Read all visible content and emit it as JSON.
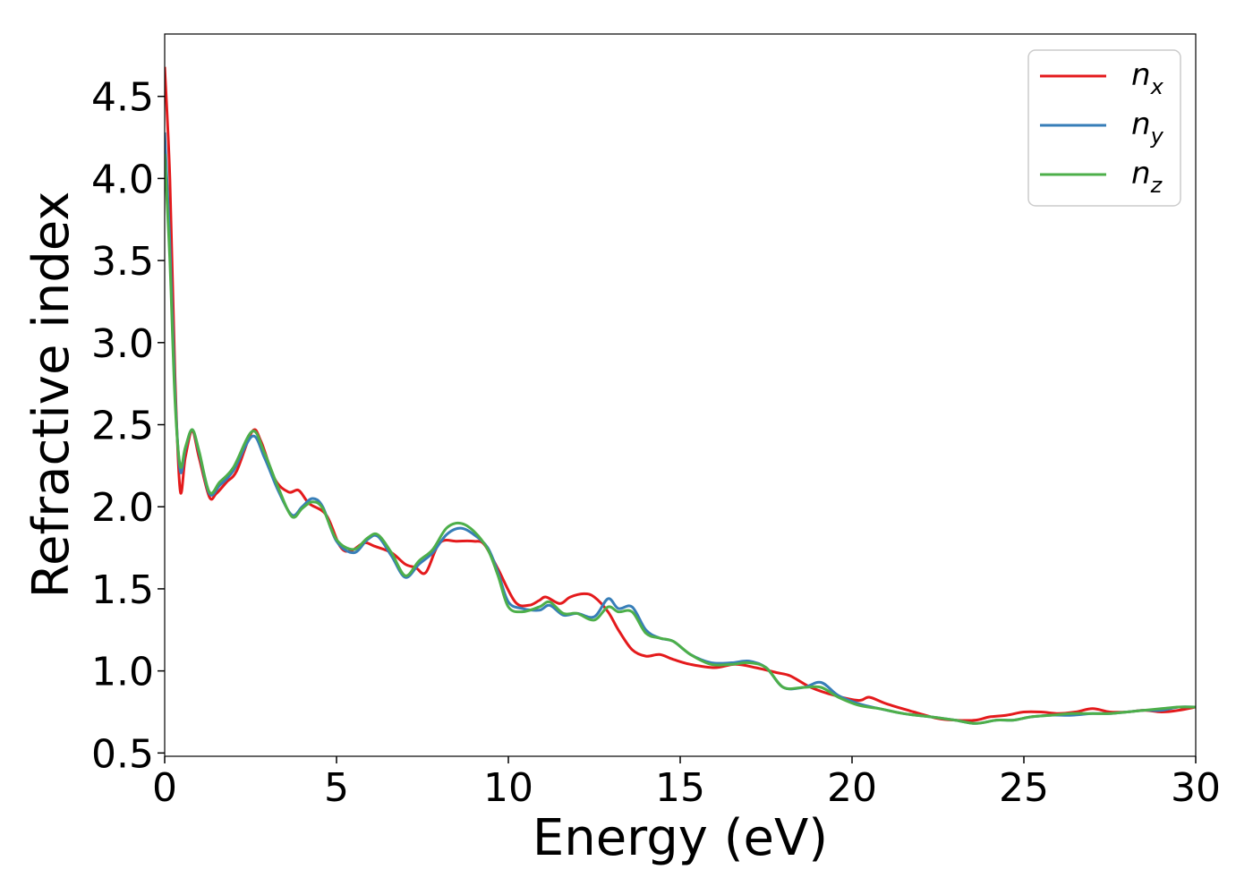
{
  "chart_data": {
    "type": "line",
    "title": "",
    "xlabel": "Energy (eV)",
    "ylabel": "Refractive index",
    "xlim": [
      0,
      30
    ],
    "ylim": [
      0.48,
      4.88
    ],
    "xticks": [
      0,
      5,
      10,
      15,
      20,
      25,
      30
    ],
    "yticks": [
      0.5,
      1.0,
      1.5,
      2.0,
      2.5,
      3.0,
      3.5,
      4.0,
      4.5
    ],
    "xtick_labels": [
      "0",
      "5",
      "10",
      "15",
      "20",
      "25",
      "30"
    ],
    "ytick_labels": [
      "0.5",
      "1.0",
      "1.5",
      "2.0",
      "2.5",
      "3.0",
      "3.5",
      "4.0",
      "4.5"
    ],
    "grid": false,
    "legend_position": "top-right",
    "series": [
      {
        "name": "n",
        "subscript": "x",
        "color": "#e41a1c",
        "points": [
          [
            0,
            4.68
          ],
          [
            0.15,
            4.0
          ],
          [
            0.3,
            2.8
          ],
          [
            0.45,
            2.1
          ],
          [
            0.6,
            2.3
          ],
          [
            0.8,
            2.46
          ],
          [
            1.0,
            2.3
          ],
          [
            1.3,
            2.06
          ],
          [
            1.5,
            2.08
          ],
          [
            1.8,
            2.15
          ],
          [
            2.1,
            2.22
          ],
          [
            2.55,
            2.46
          ],
          [
            2.8,
            2.4
          ],
          [
            3.2,
            2.17
          ],
          [
            3.6,
            2.09
          ],
          [
            3.9,
            2.1
          ],
          [
            4.2,
            2.02
          ],
          [
            4.7,
            1.95
          ],
          [
            5.1,
            1.76
          ],
          [
            5.4,
            1.73
          ],
          [
            5.8,
            1.78
          ],
          [
            6.1,
            1.76
          ],
          [
            6.6,
            1.72
          ],
          [
            7.0,
            1.65
          ],
          [
            7.3,
            1.63
          ],
          [
            7.6,
            1.6
          ],
          [
            8.0,
            1.78
          ],
          [
            8.5,
            1.79
          ],
          [
            9.0,
            1.79
          ],
          [
            9.3,
            1.77
          ],
          [
            9.7,
            1.62
          ],
          [
            10.2,
            1.42
          ],
          [
            10.6,
            1.4
          ],
          [
            10.9,
            1.43
          ],
          [
            11.1,
            1.45
          ],
          [
            11.5,
            1.41
          ],
          [
            11.8,
            1.45
          ],
          [
            12.2,
            1.47
          ],
          [
            12.5,
            1.45
          ],
          [
            12.9,
            1.36
          ],
          [
            13.2,
            1.25
          ],
          [
            13.6,
            1.13
          ],
          [
            14.0,
            1.09
          ],
          [
            14.4,
            1.1
          ],
          [
            14.8,
            1.07
          ],
          [
            15.3,
            1.04
          ],
          [
            16.0,
            1.02
          ],
          [
            16.6,
            1.04
          ],
          [
            17.2,
            1.02
          ],
          [
            17.8,
            0.99
          ],
          [
            18.2,
            0.97
          ],
          [
            18.8,
            0.9
          ],
          [
            19.5,
            0.85
          ],
          [
            20.2,
            0.82
          ],
          [
            20.5,
            0.84
          ],
          [
            21.0,
            0.8
          ],
          [
            21.8,
            0.75
          ],
          [
            22.5,
            0.71
          ],
          [
            23.0,
            0.7
          ],
          [
            23.6,
            0.7
          ],
          [
            24.0,
            0.72
          ],
          [
            24.5,
            0.73
          ],
          [
            25.0,
            0.75
          ],
          [
            25.5,
            0.75
          ],
          [
            26.0,
            0.74
          ],
          [
            26.5,
            0.75
          ],
          [
            27.0,
            0.77
          ],
          [
            27.5,
            0.75
          ],
          [
            28.0,
            0.75
          ],
          [
            28.5,
            0.76
          ],
          [
            29.0,
            0.75
          ],
          [
            29.5,
            0.76
          ],
          [
            30.0,
            0.78
          ]
        ]
      },
      {
        "name": "n",
        "subscript": "y",
        "color": "#377eb8",
        "points": [
          [
            0,
            4.28
          ],
          [
            0.15,
            3.6
          ],
          [
            0.3,
            2.7
          ],
          [
            0.45,
            2.22
          ],
          [
            0.6,
            2.35
          ],
          [
            0.8,
            2.47
          ],
          [
            1.0,
            2.33
          ],
          [
            1.3,
            2.08
          ],
          [
            1.6,
            2.13
          ],
          [
            2.0,
            2.22
          ],
          [
            2.55,
            2.43
          ],
          [
            2.9,
            2.3
          ],
          [
            3.3,
            2.1
          ],
          [
            3.7,
            1.95
          ],
          [
            4.0,
            2.0
          ],
          [
            4.3,
            2.05
          ],
          [
            4.6,
            2.0
          ],
          [
            5.0,
            1.79
          ],
          [
            5.5,
            1.72
          ],
          [
            5.9,
            1.8
          ],
          [
            6.2,
            1.82
          ],
          [
            6.6,
            1.7
          ],
          [
            7.0,
            1.57
          ],
          [
            7.4,
            1.65
          ],
          [
            7.8,
            1.72
          ],
          [
            8.2,
            1.83
          ],
          [
            8.6,
            1.87
          ],
          [
            9.0,
            1.83
          ],
          [
            9.4,
            1.75
          ],
          [
            9.7,
            1.6
          ],
          [
            10.0,
            1.42
          ],
          [
            10.4,
            1.38
          ],
          [
            10.9,
            1.37
          ],
          [
            11.2,
            1.4
          ],
          [
            11.6,
            1.34
          ],
          [
            12.0,
            1.35
          ],
          [
            12.5,
            1.33
          ],
          [
            12.9,
            1.44
          ],
          [
            13.2,
            1.38
          ],
          [
            13.6,
            1.39
          ],
          [
            14.0,
            1.25
          ],
          [
            14.4,
            1.2
          ],
          [
            14.8,
            1.18
          ],
          [
            15.3,
            1.1
          ],
          [
            15.9,
            1.05
          ],
          [
            16.5,
            1.05
          ],
          [
            17.0,
            1.06
          ],
          [
            17.5,
            1.02
          ],
          [
            18.0,
            0.9
          ],
          [
            18.6,
            0.9
          ],
          [
            19.1,
            0.93
          ],
          [
            19.6,
            0.85
          ],
          [
            20.2,
            0.8
          ],
          [
            20.8,
            0.77
          ],
          [
            21.5,
            0.74
          ],
          [
            22.3,
            0.72
          ],
          [
            23.0,
            0.7
          ],
          [
            23.6,
            0.68
          ],
          [
            24.2,
            0.7
          ],
          [
            24.7,
            0.7
          ],
          [
            25.2,
            0.72
          ],
          [
            25.8,
            0.73
          ],
          [
            26.4,
            0.73
          ],
          [
            27.0,
            0.74
          ],
          [
            27.5,
            0.74
          ],
          [
            28.0,
            0.75
          ],
          [
            28.5,
            0.76
          ],
          [
            29.0,
            0.76
          ],
          [
            29.5,
            0.78
          ],
          [
            30.0,
            0.78
          ]
        ]
      },
      {
        "name": "n",
        "subscript": "z",
        "color": "#4daf4a",
        "points": [
          [
            0,
            4.15
          ],
          [
            0.15,
            3.5
          ],
          [
            0.3,
            2.65
          ],
          [
            0.45,
            2.25
          ],
          [
            0.6,
            2.36
          ],
          [
            0.8,
            2.47
          ],
          [
            1.0,
            2.34
          ],
          [
            1.3,
            2.09
          ],
          [
            1.6,
            2.15
          ],
          [
            2.0,
            2.24
          ],
          [
            2.55,
            2.46
          ],
          [
            2.9,
            2.33
          ],
          [
            3.3,
            2.12
          ],
          [
            3.7,
            1.94
          ],
          [
            4.0,
            1.99
          ],
          [
            4.3,
            2.03
          ],
          [
            4.6,
            1.99
          ],
          [
            5.0,
            1.8
          ],
          [
            5.5,
            1.74
          ],
          [
            5.9,
            1.81
          ],
          [
            6.2,
            1.83
          ],
          [
            6.6,
            1.72
          ],
          [
            7.0,
            1.58
          ],
          [
            7.4,
            1.67
          ],
          [
            7.8,
            1.74
          ],
          [
            8.2,
            1.87
          ],
          [
            8.6,
            1.9
          ],
          [
            9.0,
            1.85
          ],
          [
            9.4,
            1.74
          ],
          [
            9.7,
            1.58
          ],
          [
            10.0,
            1.39
          ],
          [
            10.4,
            1.36
          ],
          [
            10.9,
            1.39
          ],
          [
            11.2,
            1.42
          ],
          [
            11.6,
            1.35
          ],
          [
            12.0,
            1.35
          ],
          [
            12.5,
            1.31
          ],
          [
            12.9,
            1.39
          ],
          [
            13.2,
            1.36
          ],
          [
            13.6,
            1.36
          ],
          [
            14.0,
            1.23
          ],
          [
            14.4,
            1.2
          ],
          [
            14.8,
            1.18
          ],
          [
            15.3,
            1.1
          ],
          [
            15.9,
            1.04
          ],
          [
            16.5,
            1.04
          ],
          [
            17.0,
            1.05
          ],
          [
            17.5,
            1.02
          ],
          [
            18.0,
            0.9
          ],
          [
            18.6,
            0.9
          ],
          [
            19.1,
            0.9
          ],
          [
            19.6,
            0.84
          ],
          [
            20.2,
            0.79
          ],
          [
            20.8,
            0.77
          ],
          [
            21.5,
            0.74
          ],
          [
            22.3,
            0.72
          ],
          [
            23.0,
            0.7
          ],
          [
            23.6,
            0.68
          ],
          [
            24.2,
            0.7
          ],
          [
            24.7,
            0.7
          ],
          [
            25.2,
            0.72
          ],
          [
            25.8,
            0.73
          ],
          [
            26.4,
            0.74
          ],
          [
            27.0,
            0.74
          ],
          [
            27.5,
            0.74
          ],
          [
            28.0,
            0.75
          ],
          [
            28.5,
            0.76
          ],
          [
            29.0,
            0.77
          ],
          [
            29.5,
            0.78
          ],
          [
            30.0,
            0.78
          ]
        ]
      }
    ]
  }
}
